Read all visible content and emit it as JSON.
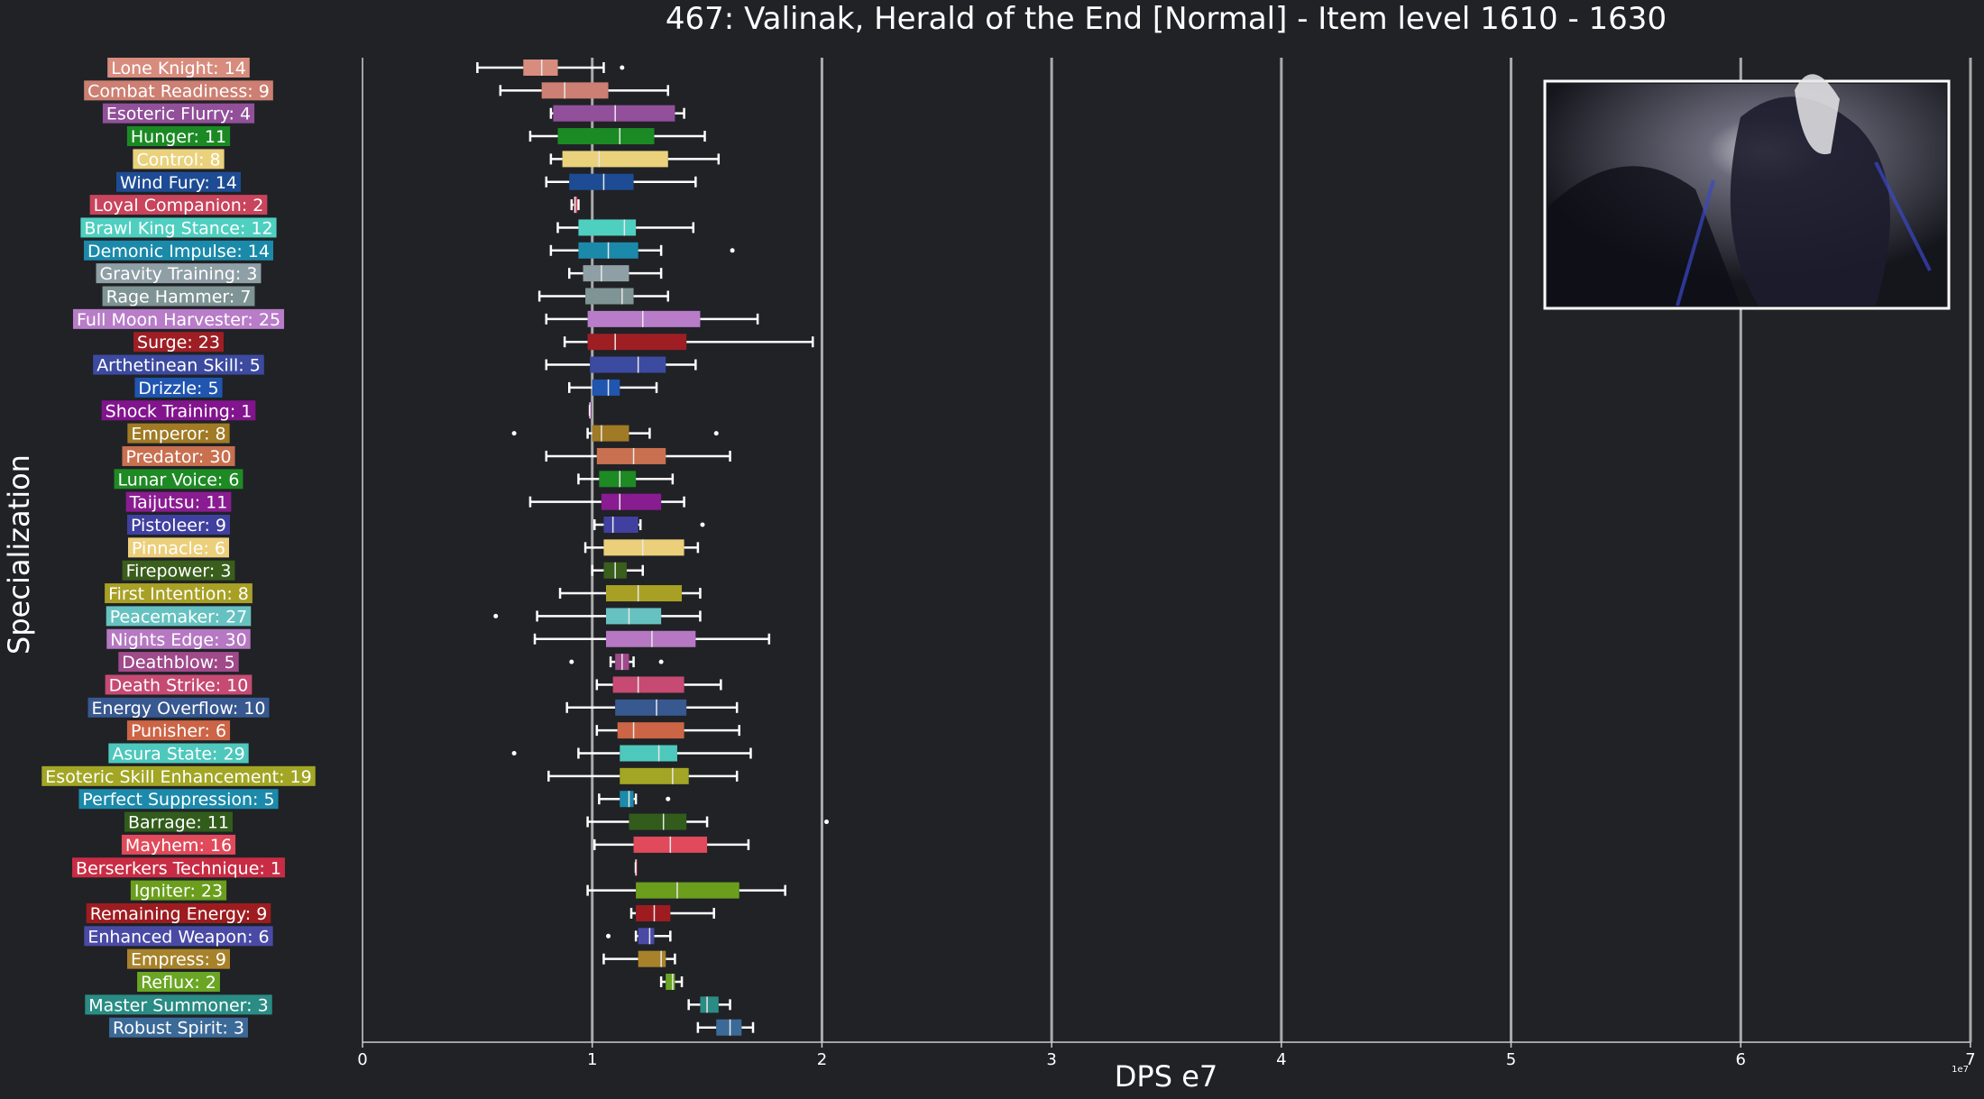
{
  "chart_data": {
    "type": "boxplot",
    "title": "467: Valinak, Herald of the End [Normal] - Item level 1610 - 1630",
    "xlabel": "DPS e7",
    "ylabel": "Specialization",
    "offset_label": "1e7",
    "xlim": [
      0,
      7
    ],
    "xticks": [
      "0",
      "1",
      "2",
      "3",
      "4",
      "5",
      "6",
      "7"
    ],
    "grid": "vertical",
    "colors": {
      "background": "#202226",
      "grid": "#aaaaaa",
      "text": "#ffffff"
    },
    "inset_image": "boss-portrait-icon",
    "series": [
      {
        "label": "Lone Knight: 14",
        "color": "#d88c7e",
        "wmin": 0.5,
        "q1": 0.7,
        "med": 0.78,
        "q3": 0.85,
        "wmax": 1.05,
        "outliers": [
          1.13
        ]
      },
      {
        "label": "Combat Readiness: 9",
        "color": "#cc7f72",
        "wmin": 0.6,
        "q1": 0.78,
        "med": 0.88,
        "q3": 1.07,
        "wmax": 1.33,
        "outliers": []
      },
      {
        "label": "Esoteric Flurry: 4",
        "color": "#92509a",
        "wmin": 0.82,
        "q1": 0.83,
        "med": 1.1,
        "q3": 1.36,
        "wmax": 1.4,
        "outliers": []
      },
      {
        "label": "Hunger: 11",
        "color": "#1b8a24",
        "wmin": 0.73,
        "q1": 0.85,
        "med": 1.12,
        "q3": 1.27,
        "wmax": 1.49,
        "outliers": []
      },
      {
        "label": "Control: 8",
        "color": "#ead27c",
        "wmin": 0.82,
        "q1": 0.87,
        "med": 1.03,
        "q3": 1.33,
        "wmax": 1.55,
        "outliers": []
      },
      {
        "label": "Wind Fury: 14",
        "color": "#1e4c94",
        "wmin": 0.8,
        "q1": 0.9,
        "med": 1.05,
        "q3": 1.18,
        "wmax": 1.45,
        "outliers": []
      },
      {
        "label": "Loyal Companion: 2",
        "color": "#c9445c",
        "wmin": 0.91,
        "q1": 0.92,
        "med": 0.925,
        "q3": 0.935,
        "wmax": 0.94,
        "outliers": []
      },
      {
        "label": "Brawl King Stance: 12",
        "color": "#4fcfc0",
        "wmin": 0.85,
        "q1": 0.94,
        "med": 1.14,
        "q3": 1.19,
        "wmax": 1.44,
        "outliers": []
      },
      {
        "label": "Demonic Impulse: 14",
        "color": "#1b8aaa",
        "wmin": 0.82,
        "q1": 0.94,
        "med": 1.07,
        "q3": 1.2,
        "wmax": 1.3,
        "outliers": [
          1.61
        ]
      },
      {
        "label": "Gravity Training: 3",
        "color": "#8f9fa6",
        "wmin": 0.9,
        "q1": 0.96,
        "med": 1.04,
        "q3": 1.16,
        "wmax": 1.3,
        "outliers": []
      },
      {
        "label": "Rage Hammer: 7",
        "color": "#7f9494",
        "wmin": 0.77,
        "q1": 0.97,
        "med": 1.13,
        "q3": 1.18,
        "wmax": 1.33,
        "outliers": []
      },
      {
        "label": "Full Moon Harvester: 25",
        "color": "#b87cc8",
        "wmin": 0.8,
        "q1": 0.98,
        "med": 1.22,
        "q3": 1.47,
        "wmax": 1.72,
        "outliers": []
      },
      {
        "label": "Surge: 23",
        "color": "#9e1e24",
        "wmin": 0.88,
        "q1": 0.98,
        "med": 1.1,
        "q3": 1.41,
        "wmax": 1.96,
        "outliers": []
      },
      {
        "label": "Arthetinean Skill: 5",
        "color": "#3c4aa0",
        "wmin": 0.8,
        "q1": 0.99,
        "med": 1.2,
        "q3": 1.32,
        "wmax": 1.45,
        "outliers": []
      },
      {
        "label": "Drizzle: 5",
        "color": "#2055b0",
        "wmin": 0.9,
        "q1": 1.0,
        "med": 1.07,
        "q3": 1.12,
        "wmax": 1.28,
        "outliers": []
      },
      {
        "label": "Shock Training: 1",
        "color": "#82148e",
        "wmin": 0.99,
        "q1": 0.99,
        "med": 0.99,
        "q3": 0.99,
        "wmax": 0.99,
        "outliers": []
      },
      {
        "label": "Emperor: 8",
        "color": "#a07a24",
        "wmin": 0.98,
        "q1": 1.0,
        "med": 1.04,
        "q3": 1.16,
        "wmax": 1.25,
        "outliers": [
          0.66,
          1.54
        ]
      },
      {
        "label": "Predator: 30",
        "color": "#c87050",
        "wmin": 0.8,
        "q1": 1.02,
        "med": 1.18,
        "q3": 1.32,
        "wmax": 1.6,
        "outliers": []
      },
      {
        "label": "Lunar Voice: 6",
        "color": "#1e8a24",
        "wmin": 0.94,
        "q1": 1.03,
        "med": 1.12,
        "q3": 1.19,
        "wmax": 1.35,
        "outliers": []
      },
      {
        "label": "Taijutsu: 11",
        "color": "#8a1c92",
        "wmin": 0.73,
        "q1": 1.04,
        "med": 1.12,
        "q3": 1.3,
        "wmax": 1.4,
        "outliers": []
      },
      {
        "label": "Pistoleer: 9",
        "color": "#4040a0",
        "wmin": 1.01,
        "q1": 1.05,
        "med": 1.09,
        "q3": 1.2,
        "wmax": 1.21,
        "outliers": [
          1.48
        ]
      },
      {
        "label": "Pinnacle: 6",
        "color": "#eccf7a",
        "wmin": 0.97,
        "q1": 1.05,
        "med": 1.22,
        "q3": 1.4,
        "wmax": 1.46,
        "outliers": []
      },
      {
        "label": "Firepower: 3",
        "color": "#3a5e1c",
        "wmin": 1.0,
        "q1": 1.05,
        "med": 1.1,
        "q3": 1.15,
        "wmax": 1.22,
        "outliers": []
      },
      {
        "label": "First Intention: 8",
        "color": "#a8a024",
        "wmin": 0.86,
        "q1": 1.06,
        "med": 1.2,
        "q3": 1.39,
        "wmax": 1.47,
        "outliers": []
      },
      {
        "label": "Peacemaker: 27",
        "color": "#66c2c0",
        "wmin": 0.76,
        "q1": 1.06,
        "med": 1.16,
        "q3": 1.3,
        "wmax": 1.47,
        "outliers": [
          0.58
        ]
      },
      {
        "label": "Nights Edge: 30",
        "color": "#b678c2",
        "wmin": 0.75,
        "q1": 1.06,
        "med": 1.26,
        "q3": 1.45,
        "wmax": 1.77,
        "outliers": []
      },
      {
        "label": "Deathblow: 5",
        "color": "#a04a8a",
        "wmin": 1.08,
        "q1": 1.1,
        "med": 1.13,
        "q3": 1.16,
        "wmax": 1.18,
        "outliers": [
          0.91,
          1.3
        ]
      },
      {
        "label": "Death Strike: 10",
        "color": "#c64a72",
        "wmin": 1.02,
        "q1": 1.09,
        "med": 1.2,
        "q3": 1.4,
        "wmax": 1.56,
        "outliers": []
      },
      {
        "label": "Energy Overflow: 10",
        "color": "#385890",
        "wmin": 0.89,
        "q1": 1.1,
        "med": 1.28,
        "q3": 1.41,
        "wmax": 1.63,
        "outliers": []
      },
      {
        "label": "Punisher: 6",
        "color": "#cc6446",
        "wmin": 1.02,
        "q1": 1.11,
        "med": 1.18,
        "q3": 1.4,
        "wmax": 1.64,
        "outliers": []
      },
      {
        "label": "Asura State: 29",
        "color": "#4ec8bc",
        "wmin": 0.94,
        "q1": 1.12,
        "med": 1.29,
        "q3": 1.37,
        "wmax": 1.69,
        "outliers": [
          0.66
        ]
      },
      {
        "label": "Esoteric Skill Enhancement: 19",
        "color": "#a2a624",
        "wmin": 0.81,
        "q1": 1.12,
        "med": 1.35,
        "q3": 1.42,
        "wmax": 1.63,
        "outliers": []
      },
      {
        "label": "Perfect Suppression: 5",
        "color": "#1c8aaa",
        "wmin": 1.03,
        "q1": 1.12,
        "med": 1.16,
        "q3": 1.18,
        "wmax": 1.19,
        "outliers": [
          1.33
        ]
      },
      {
        "label": "Barrage: 11",
        "color": "#325c1c",
        "wmin": 0.98,
        "q1": 1.16,
        "med": 1.31,
        "q3": 1.41,
        "wmax": 1.5,
        "outliers": [
          2.02
        ]
      },
      {
        "label": "Mayhem: 16",
        "color": "#e04a5a",
        "wmin": 1.01,
        "q1": 1.18,
        "med": 1.34,
        "q3": 1.5,
        "wmax": 1.68,
        "outliers": []
      },
      {
        "label": "Berserkers Technique: 1",
        "color": "#c82c44",
        "wmin": 1.19,
        "q1": 1.19,
        "med": 1.19,
        "q3": 1.19,
        "wmax": 1.19,
        "outliers": []
      },
      {
        "label": "Igniter: 23",
        "color": "#6a9e1c",
        "wmin": 0.98,
        "q1": 1.19,
        "med": 1.37,
        "q3": 1.64,
        "wmax": 1.84,
        "outliers": []
      },
      {
        "label": "Remaining Energy: 9",
        "color": "#9e1c20",
        "wmin": 1.17,
        "q1": 1.19,
        "med": 1.27,
        "q3": 1.34,
        "wmax": 1.53,
        "outliers": []
      },
      {
        "label": "Enhanced Weapon: 6",
        "color": "#4a4aa6",
        "wmin": 1.19,
        "q1": 1.2,
        "med": 1.25,
        "q3": 1.27,
        "wmax": 1.34,
        "outliers": [
          1.07
        ]
      },
      {
        "label": "Empress: 9",
        "color": "#a8822a",
        "wmin": 1.05,
        "q1": 1.2,
        "med": 1.3,
        "q3": 1.32,
        "wmax": 1.36,
        "outliers": []
      },
      {
        "label": "Reflux: 2",
        "color": "#6aa624",
        "wmin": 1.3,
        "q1": 1.32,
        "med": 1.35,
        "q3": 1.36,
        "wmax": 1.39,
        "outliers": []
      },
      {
        "label": "Master Summoner: 3",
        "color": "#2a8c84",
        "wmin": 1.42,
        "q1": 1.47,
        "med": 1.5,
        "q3": 1.55,
        "wmax": 1.6,
        "outliers": []
      },
      {
        "label": "Robust Spirit: 3",
        "color": "#3c6a98",
        "wmin": 1.46,
        "q1": 1.54,
        "med": 1.6,
        "q3": 1.65,
        "wmax": 1.7,
        "outliers": []
      }
    ]
  }
}
